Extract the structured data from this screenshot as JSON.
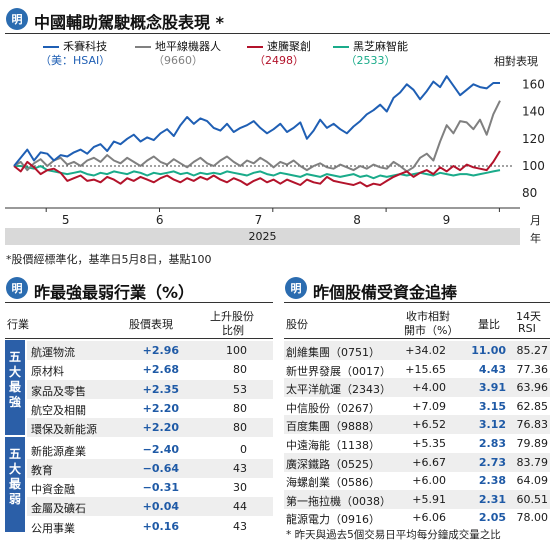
{
  "logo_text": "明",
  "chart": {
    "title": "中國輔助駕駛概念股表現 *",
    "axis_label": "相對表現",
    "year_label": "2025",
    "x_unit": "月",
    "year_unit": "年",
    "footnote": "*股價經標準化，基準日5月8日，基點100"
  },
  "chart_data": {
    "type": "line",
    "title": "中國輔助駕駛概念股表現 *",
    "xlabel": "2025",
    "ylabel": "相對表現",
    "x_ticks": [
      "5",
      "6",
      "7",
      "8",
      "9"
    ],
    "y_ticks": [
      80,
      100,
      120,
      140,
      160
    ],
    "ylim": [
      75,
      172
    ],
    "grid": false,
    "legend_position": "top",
    "series": [
      {
        "name": "禾賽科技",
        "code": "（美：HSAI）",
        "color": "#1f5fb4",
        "values": [
          100,
          106,
          112,
          104,
          110,
          109,
          104,
          108,
          107,
          110,
          112,
          109,
          114,
          116,
          111,
          118,
          116,
          120,
          123,
          118,
          121,
          119,
          124,
          127,
          122,
          130,
          136,
          131,
          135,
          133,
          128,
          126,
          131,
          125,
          128,
          130,
          133,
          128,
          124,
          127,
          131,
          125,
          128,
          132,
          120,
          126,
          134,
          128,
          131,
          127,
          124,
          129,
          133,
          138,
          141,
          145,
          140,
          150,
          154,
          160,
          156,
          149,
          155,
          162,
          158,
          166,
          159,
          152,
          156,
          160,
          158,
          157,
          161,
          161
        ]
      },
      {
        "name": "地平線機器人",
        "code": "（9660）",
        "color": "#808080",
        "values": [
          100,
          103,
          97,
          102,
          105,
          100,
          104,
          106,
          101,
          103,
          100,
          104,
          106,
          103,
          108,
          104,
          102,
          106,
          103,
          100,
          104,
          107,
          103,
          101,
          105,
          102,
          99,
          103,
          106,
          102,
          100,
          104,
          107,
          103,
          100,
          104,
          102,
          106,
          103,
          99,
          103,
          101,
          104,
          100,
          97,
          100,
          102,
          99,
          98,
          101,
          99,
          97,
          100,
          98,
          101,
          99,
          98,
          103,
          100,
          96,
          99,
          106,
          109,
          104,
          118,
          130,
          124,
          133,
          132,
          127,
          134,
          123,
          138,
          148
        ]
      },
      {
        "name": "速騰聚創",
        "code": "（2498）",
        "color": "#b3132b",
        "values": [
          100,
          96,
          103,
          99,
          94,
          97,
          98,
          95,
          89,
          91,
          93,
          89,
          90,
          88,
          92,
          90,
          87,
          91,
          89,
          92,
          90,
          88,
          91,
          93,
          90,
          88,
          91,
          89,
          92,
          90,
          93,
          90,
          88,
          91,
          89,
          86,
          89,
          91,
          88,
          90,
          87,
          90,
          88,
          86,
          90,
          88,
          87,
          92,
          89,
          88,
          87,
          86,
          88,
          85,
          87,
          86,
          89,
          92,
          94,
          96,
          92,
          95,
          97,
          94,
          99,
          96,
          100,
          97,
          101,
          99,
          98,
          97,
          103,
          111
        ]
      },
      {
        "name": "黑芝麻智能",
        "code": "（2533）",
        "color": "#1aab8a",
        "values": [
          100,
          100,
          99,
          98,
          100,
          97,
          96,
          95,
          94,
          95,
          96,
          94,
          93,
          95,
          94,
          96,
          95,
          94,
          96,
          95,
          93,
          95,
          94,
          95,
          96,
          94,
          95,
          93,
          95,
          94,
          95,
          94,
          96,
          95,
          94,
          93,
          95,
          96,
          94,
          93,
          95,
          94,
          93,
          92,
          94,
          93,
          92,
          94,
          93,
          92,
          93,
          94,
          92,
          93,
          91,
          93,
          92,
          93,
          94,
          93,
          94,
          95,
          94,
          93,
          95,
          94,
          93,
          94,
          94,
          93,
          94,
          95,
          96,
          97
        ]
      }
    ]
  },
  "sector": {
    "title": "昨最強最弱行業（%）",
    "headers": [
      "行業",
      "股價表現",
      "上升股份",
      "比例"
    ],
    "strong_label": "五大最強",
    "weak_label": "五大最弱",
    "rows": [
      {
        "name": "航運物流",
        "perf": "+2.96",
        "ratio": "100"
      },
      {
        "name": "原材料",
        "perf": "+2.68",
        "ratio": "80"
      },
      {
        "name": "家品及零售",
        "perf": "+2.35",
        "ratio": "53"
      },
      {
        "name": "航空及相關",
        "perf": "+2.20",
        "ratio": "80"
      },
      {
        "name": "環保及新能源",
        "perf": "+2.20",
        "ratio": "80"
      },
      {
        "name": "新能源產業",
        "perf": "−2.40",
        "ratio": "0"
      },
      {
        "name": "教育",
        "perf": "−0.64",
        "ratio": "43"
      },
      {
        "name": "中資金融",
        "perf": "−0.31",
        "ratio": "30"
      },
      {
        "name": "金屬及礦石",
        "perf": "+0.04",
        "ratio": "44"
      },
      {
        "name": "公用事業",
        "perf": "+0.16",
        "ratio": "43"
      }
    ]
  },
  "fund": {
    "title": "昨個股備受資金追捧",
    "headers": [
      "股份",
      "收市相對",
      "開市（%）",
      "量比",
      "14天",
      "RSI"
    ],
    "rows": [
      {
        "name": "創維集團（0751）",
        "chg": "+34.02",
        "vol": "11.00",
        "rsi": "85.27"
      },
      {
        "name": "新世界發展（0017）",
        "chg": "+15.65",
        "vol": "4.43",
        "rsi": "77.36"
      },
      {
        "name": "太平洋航運（2343）",
        "chg": "+4.00",
        "vol": "3.91",
        "rsi": "63.96"
      },
      {
        "name": "中信股份（0267）",
        "chg": "+7.09",
        "vol": "3.15",
        "rsi": "62.85"
      },
      {
        "name": "百度集團（9888）",
        "chg": "+6.52",
        "vol": "3.12",
        "rsi": "76.83"
      },
      {
        "name": "中遠海能（1138）",
        "chg": "+5.35",
        "vol": "2.83",
        "rsi": "79.89"
      },
      {
        "name": "廣深鐵路（0525）",
        "chg": "+6.67",
        "vol": "2.73",
        "rsi": "83.79"
      },
      {
        "name": "海螺創業（0586）",
        "chg": "+6.00",
        "vol": "2.38",
        "rsi": "64.09"
      },
      {
        "name": "第一拖拉機（0038）",
        "chg": "+5.91",
        "vol": "2.31",
        "rsi": "60.51"
      },
      {
        "name": "龍源電力（0916）",
        "chg": "+6.06",
        "vol": "2.05",
        "rsi": "78.00"
      }
    ],
    "footnote": "* 昨天與過去5個交易日平均每分鐘成交量之比"
  }
}
